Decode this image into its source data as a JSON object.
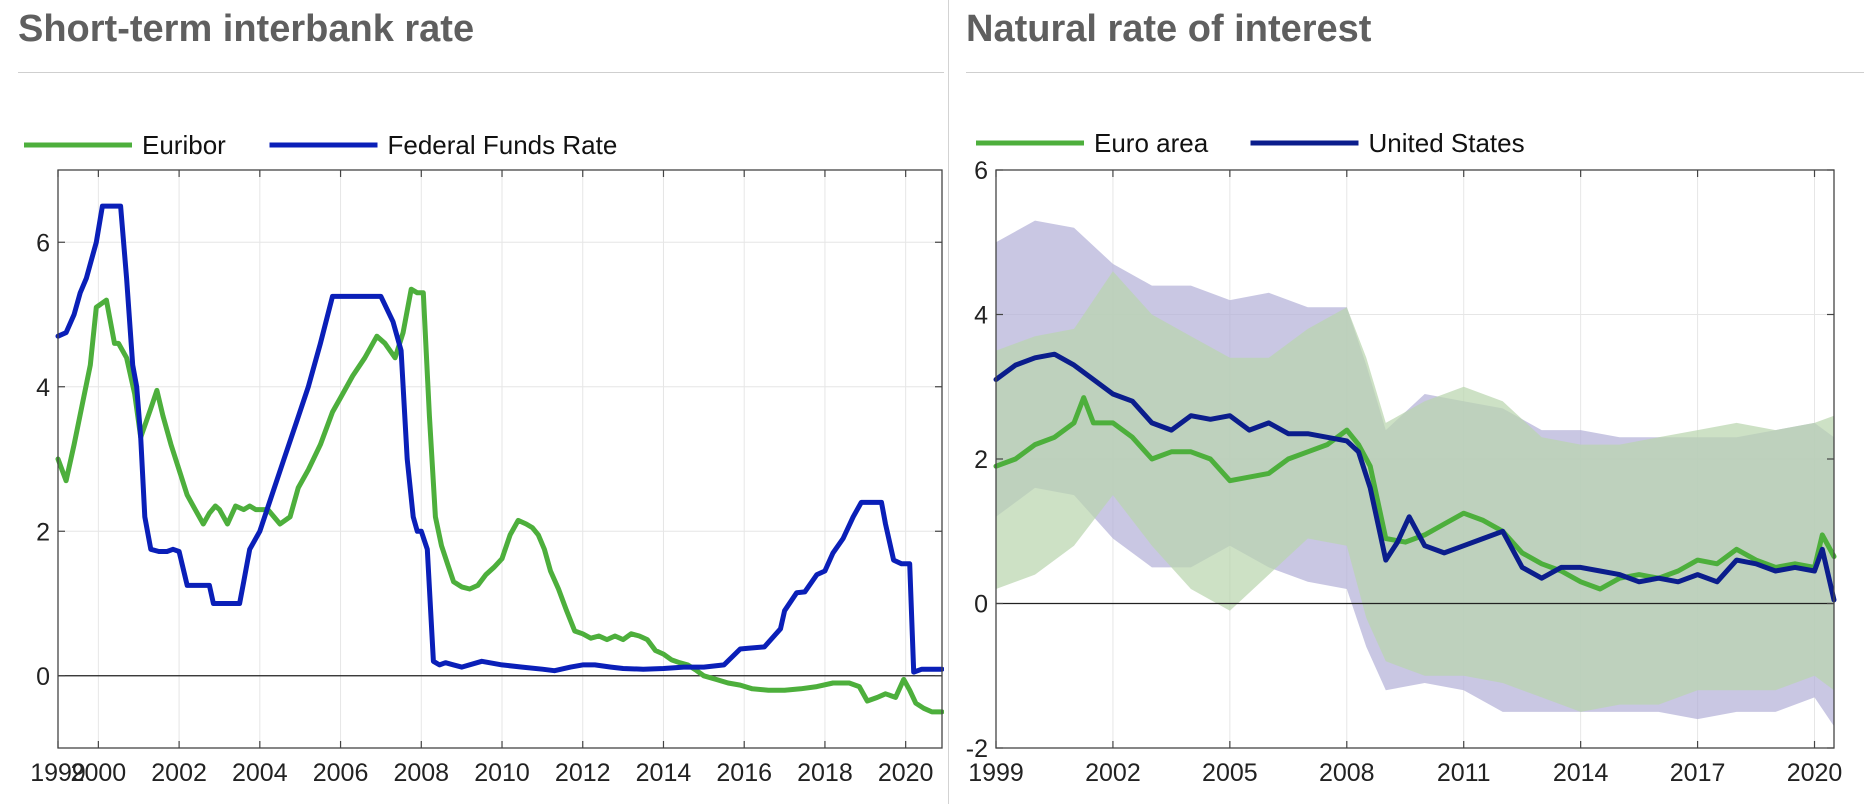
{
  "panels": {
    "left_title": "Short-term interbank rate",
    "right_title": "Natural rate of interest"
  },
  "colors": {
    "green": "#4daf3c",
    "blue": "#0a1fb8",
    "navy": "#0b1d8c",
    "band_purple": "#b4b2d8",
    "band_green": "#bad6ae",
    "band_overlap": "#8fa09a"
  },
  "chart_data": [
    {
      "type": "line",
      "title": "Short-term interbank rate",
      "xlabel": "",
      "ylabel": "",
      "xlim": [
        1999.0,
        2020.9
      ],
      "ylim": [
        -1,
        7
      ],
      "xticks": [
        1999,
        2000,
        2002,
        2004,
        2006,
        2008,
        2010,
        2012,
        2014,
        2016,
        2018,
        2020
      ],
      "yticks": [
        0,
        2,
        4,
        6
      ],
      "grid": true,
      "legend": "top-left",
      "series": [
        {
          "name": "Euribor",
          "color": "#4daf3c",
          "x": [
            1999.0,
            1999.2,
            1999.4,
            1999.6,
            1999.8,
            1999.95,
            2000.2,
            2000.4,
            2000.5,
            2000.7,
            2000.9,
            2001.05,
            2001.3,
            2001.45,
            2001.6,
            2001.8,
            2002.0,
            2002.2,
            2002.4,
            2002.6,
            2002.75,
            2002.9,
            2003.0,
            2003.2,
            2003.4,
            2003.6,
            2003.75,
            2003.9,
            2004.2,
            2004.5,
            2004.75,
            2004.95,
            2005.2,
            2005.5,
            2005.8,
            2006.0,
            2006.3,
            2006.6,
            2006.9,
            2007.1,
            2007.35,
            2007.55,
            2007.75,
            2007.9,
            2008.05,
            2008.2,
            2008.35,
            2008.5,
            2008.65,
            2008.8,
            2009.0,
            2009.2,
            2009.4,
            2009.6,
            2009.8,
            2010.0,
            2010.2,
            2010.4,
            2010.6,
            2010.75,
            2010.9,
            2011.05,
            2011.2,
            2011.4,
            2011.6,
            2011.8,
            2012.0,
            2012.2,
            2012.4,
            2012.6,
            2012.8,
            2013.0,
            2013.2,
            2013.4,
            2013.6,
            2013.8,
            2014.0,
            2014.2,
            2014.4,
            2014.6,
            2014.8,
            2015.0,
            2015.3,
            2015.6,
            2015.9,
            2016.2,
            2016.6,
            2017.0,
            2017.4,
            2017.8,
            2018.2,
            2018.6,
            2018.85,
            2019.05,
            2019.3,
            2019.5,
            2019.75,
            2019.95,
            2020.1,
            2020.25,
            2020.45,
            2020.65,
            2020.9
          ],
          "values": [
            3.0,
            2.7,
            3.2,
            3.75,
            4.3,
            5.1,
            5.2,
            4.6,
            4.6,
            4.4,
            3.9,
            3.3,
            3.7,
            3.95,
            3.6,
            3.2,
            2.85,
            2.5,
            2.3,
            2.1,
            2.25,
            2.35,
            2.3,
            2.1,
            2.35,
            2.3,
            2.35,
            2.3,
            2.3,
            2.1,
            2.2,
            2.6,
            2.85,
            3.2,
            3.65,
            3.85,
            4.15,
            4.4,
            4.7,
            4.6,
            4.4,
            4.75,
            5.35,
            5.3,
            5.3,
            3.6,
            2.2,
            1.8,
            1.55,
            1.3,
            1.23,
            1.2,
            1.25,
            1.4,
            1.5,
            1.62,
            1.95,
            2.15,
            2.1,
            2.05,
            1.95,
            1.75,
            1.45,
            1.2,
            0.9,
            0.62,
            0.58,
            0.52,
            0.55,
            0.5,
            0.55,
            0.5,
            0.58,
            0.55,
            0.5,
            0.35,
            0.3,
            0.22,
            0.18,
            0.15,
            0.08,
            0.0,
            -0.05,
            -0.1,
            -0.13,
            -0.18,
            -0.2,
            -0.2,
            -0.18,
            -0.15,
            -0.1,
            -0.1,
            -0.15,
            -0.35,
            -0.3,
            -0.25,
            -0.3,
            -0.05,
            -0.2,
            -0.38,
            -0.45,
            -0.5,
            -0.5
          ]
        },
        {
          "name": "Federal Funds Rate",
          "color": "#0a1fb8",
          "x": [
            1999.0,
            1999.2,
            1999.4,
            1999.55,
            1999.7,
            1999.8,
            1999.95,
            2000.1,
            2000.25,
            2000.4,
            2000.55,
            2000.7,
            2000.85,
            2000.95,
            2001.05,
            2001.15,
            2001.3,
            2001.5,
            2001.7,
            2001.85,
            2002.0,
            2002.2,
            2002.5,
            2002.75,
            2002.85,
            2003.0,
            2003.25,
            2003.5,
            2003.6,
            2003.75,
            2004.0,
            2004.3,
            2004.6,
            2004.9,
            2005.2,
            2005.5,
            2005.8,
            2006.1,
            2006.3,
            2006.5,
            2006.8,
            2007.0,
            2007.3,
            2007.5,
            2007.65,
            2007.8,
            2007.9,
            2008.0,
            2008.15,
            2008.3,
            2008.45,
            2008.6,
            2008.8,
            2009.0,
            2009.5,
            2010.0,
            2010.5,
            2011.0,
            2011.3,
            2011.7,
            2012.0,
            2012.3,
            2012.7,
            2013.0,
            2013.5,
            2014.0,
            2014.5,
            2015.0,
            2015.5,
            2015.9,
            2016.1,
            2016.5,
            2016.9,
            2017.0,
            2017.3,
            2017.5,
            2017.8,
            2018.0,
            2018.2,
            2018.45,
            2018.7,
            2018.9,
            2019.1,
            2019.4,
            2019.5,
            2019.7,
            2019.9,
            2020.1,
            2020.2,
            2020.4,
            2020.7,
            2020.9
          ],
          "values": [
            4.7,
            4.75,
            5.0,
            5.3,
            5.5,
            5.7,
            6.0,
            6.5,
            6.5,
            6.5,
            6.5,
            5.5,
            4.3,
            4.0,
            3.3,
            2.2,
            1.75,
            1.72,
            1.72,
            1.75,
            1.72,
            1.25,
            1.25,
            1.25,
            1.0,
            1.0,
            1.0,
            1.0,
            1.3,
            1.75,
            2.0,
            2.5,
            3.0,
            3.5,
            4.0,
            4.6,
            5.25,
            5.25,
            5.25,
            5.25,
            5.25,
            5.25,
            4.9,
            4.5,
            3.0,
            2.2,
            2.0,
            2.0,
            1.75,
            0.2,
            0.15,
            0.18,
            0.15,
            0.12,
            0.2,
            0.15,
            0.12,
            0.09,
            0.07,
            0.12,
            0.15,
            0.15,
            0.12,
            0.1,
            0.09,
            0.1,
            0.12,
            0.12,
            0.15,
            0.37,
            0.38,
            0.4,
            0.65,
            0.9,
            1.15,
            1.16,
            1.4,
            1.45,
            1.7,
            1.9,
            2.2,
            2.4,
            2.4,
            2.4,
            2.1,
            1.6,
            1.55,
            1.55,
            0.05,
            0.09,
            0.09,
            0.09
          ]
        }
      ]
    },
    {
      "type": "line",
      "title": "Natural rate of interest",
      "xlabel": "",
      "ylabel": "",
      "xlim": [
        1999.0,
        2020.5
      ],
      "ylim": [
        -2,
        6
      ],
      "xticks": [
        1999,
        2002,
        2005,
        2008,
        2011,
        2014,
        2017,
        2020
      ],
      "yticks": [
        -2,
        0,
        2,
        4,
        6
      ],
      "grid": true,
      "legend": "top-left",
      "bands": [
        {
          "color": "#b4b2d8",
          "x": [
            1999.0,
            2000.0,
            2001.0,
            2002.0,
            2003.0,
            2004.0,
            2005.0,
            2006.0,
            2007.0,
            2008.0,
            2008.5,
            2009.0,
            2010.0,
            2011.0,
            2012.0,
            2013.0,
            2014.0,
            2015.0,
            2016.0,
            2017.0,
            2018.0,
            2019.0,
            2020.0,
            2020.5
          ],
          "upper": [
            5.0,
            5.3,
            5.2,
            4.7,
            4.4,
            4.4,
            4.2,
            4.3,
            4.1,
            4.1,
            3.3,
            2.4,
            2.9,
            2.8,
            2.7,
            2.4,
            2.4,
            2.3,
            2.3,
            2.3,
            2.3,
            2.4,
            2.5,
            2.3
          ],
          "lower": [
            1.2,
            1.6,
            1.5,
            0.9,
            0.5,
            0.5,
            0.8,
            0.5,
            0.3,
            0.2,
            -0.6,
            -1.2,
            -1.1,
            -1.2,
            -1.5,
            -1.5,
            -1.5,
            -1.5,
            -1.5,
            -1.6,
            -1.5,
            -1.5,
            -1.3,
            -1.7
          ]
        },
        {
          "color": "#bad6ae",
          "x": [
            1999.0,
            2000.0,
            2001.0,
            2002.0,
            2003.0,
            2004.0,
            2005.0,
            2006.0,
            2007.0,
            2008.0,
            2008.5,
            2009.0,
            2010.0,
            2011.0,
            2012.0,
            2013.0,
            2014.0,
            2015.0,
            2016.0,
            2017.0,
            2018.0,
            2019.0,
            2020.0,
            2020.5
          ],
          "upper": [
            3.5,
            3.7,
            3.8,
            4.6,
            4.0,
            3.7,
            3.4,
            3.4,
            3.8,
            4.1,
            3.4,
            2.5,
            2.8,
            3.0,
            2.8,
            2.3,
            2.2,
            2.2,
            2.3,
            2.4,
            2.5,
            2.4,
            2.5,
            2.6
          ],
          "lower": [
            0.2,
            0.4,
            0.8,
            1.5,
            0.8,
            0.2,
            -0.1,
            0.4,
            0.9,
            0.8,
            -0.2,
            -0.8,
            -1.0,
            -1.0,
            -1.1,
            -1.3,
            -1.5,
            -1.4,
            -1.4,
            -1.2,
            -1.2,
            -1.2,
            -1.0,
            -1.2
          ]
        }
      ],
      "series": [
        {
          "name": "Euro area",
          "color": "#4daf3c",
          "x": [
            1999.0,
            1999.5,
            2000.0,
            2000.5,
            2001.0,
            2001.25,
            2001.5,
            2002.0,
            2002.5,
            2003.0,
            2003.5,
            2004.0,
            2004.5,
            2005.0,
            2005.5,
            2006.0,
            2006.5,
            2007.0,
            2007.5,
            2008.0,
            2008.3,
            2008.6,
            2009.0,
            2009.5,
            2010.0,
            2010.5,
            2011.0,
            2011.5,
            2012.0,
            2012.5,
            2013.0,
            2013.5,
            2014.0,
            2014.5,
            2015.0,
            2015.5,
            2016.0,
            2016.5,
            2017.0,
            2017.5,
            2018.0,
            2018.5,
            2019.0,
            2019.5,
            2020.0,
            2020.2,
            2020.5
          ],
          "values": [
            1.9,
            2.0,
            2.2,
            2.3,
            2.5,
            2.85,
            2.5,
            2.5,
            2.3,
            2.0,
            2.1,
            2.1,
            2.0,
            1.7,
            1.75,
            1.8,
            2.0,
            2.1,
            2.2,
            2.4,
            2.2,
            1.9,
            0.9,
            0.85,
            0.95,
            1.1,
            1.25,
            1.15,
            1.0,
            0.7,
            0.55,
            0.45,
            0.3,
            0.2,
            0.35,
            0.4,
            0.35,
            0.45,
            0.6,
            0.55,
            0.75,
            0.6,
            0.5,
            0.55,
            0.5,
            0.95,
            0.65
          ]
        },
        {
          "name": "United States",
          "color": "#0b1d8c",
          "x": [
            1999.0,
            1999.5,
            2000.0,
            2000.5,
            2001.0,
            2001.5,
            2002.0,
            2002.5,
            2003.0,
            2003.5,
            2004.0,
            2004.5,
            2005.0,
            2005.5,
            2006.0,
            2006.5,
            2007.0,
            2007.5,
            2008.0,
            2008.3,
            2008.6,
            2009.0,
            2009.3,
            2009.6,
            2010.0,
            2010.5,
            2011.0,
            2011.5,
            2012.0,
            2012.5,
            2013.0,
            2013.5,
            2014.0,
            2014.5,
            2015.0,
            2015.5,
            2016.0,
            2016.5,
            2017.0,
            2017.5,
            2018.0,
            2018.5,
            2019.0,
            2019.5,
            2020.0,
            2020.2,
            2020.5
          ],
          "values": [
            3.1,
            3.3,
            3.4,
            3.45,
            3.3,
            3.1,
            2.9,
            2.8,
            2.5,
            2.4,
            2.6,
            2.55,
            2.6,
            2.4,
            2.5,
            2.35,
            2.35,
            2.3,
            2.25,
            2.1,
            1.6,
            0.6,
            0.85,
            1.2,
            0.8,
            0.7,
            0.8,
            0.9,
            1.0,
            0.5,
            0.35,
            0.5,
            0.5,
            0.45,
            0.4,
            0.3,
            0.35,
            0.3,
            0.4,
            0.3,
            0.6,
            0.55,
            0.45,
            0.5,
            0.45,
            0.75,
            0.05
          ]
        }
      ]
    }
  ]
}
